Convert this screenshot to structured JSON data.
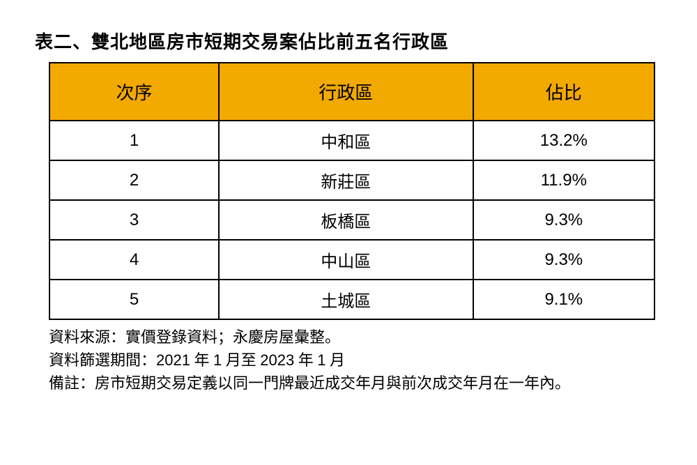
{
  "title": "表二、雙北地區房市短期交易案佔比前五名行政區",
  "table": {
    "type": "table",
    "header_bg": "#f2a900",
    "border_color": "#000000",
    "columns": [
      {
        "label": "次序",
        "width": "28%"
      },
      {
        "label": "行政區",
        "width": "42%"
      },
      {
        "label": "佔比",
        "width": "30%"
      }
    ],
    "rows": [
      {
        "rank": "1",
        "district": "中和區",
        "pct": "13.2%"
      },
      {
        "rank": "2",
        "district": "新莊區",
        "pct": "11.9%"
      },
      {
        "rank": "3",
        "district": "板橋區",
        "pct": "9.3%"
      },
      {
        "rank": "4",
        "district": "中山區",
        "pct": "9.3%"
      },
      {
        "rank": "5",
        "district": "土城區",
        "pct": "9.1%"
      }
    ]
  },
  "footnotes": {
    "line1": "資料來源：實價登錄資料；永慶房屋彙整。",
    "line2_a": "資料篩選期間：",
    "line2_b": "2021",
    "line2_c": " 年 ",
    "line2_d": "1",
    "line2_e": " 月至 ",
    "line2_f": "2023",
    "line2_g": " 年 ",
    "line2_h": "1",
    "line2_i": " 月",
    "line3": "備註：房市短期交易定義以同一門牌最近成交年月與前次成交年月在一年內。"
  }
}
